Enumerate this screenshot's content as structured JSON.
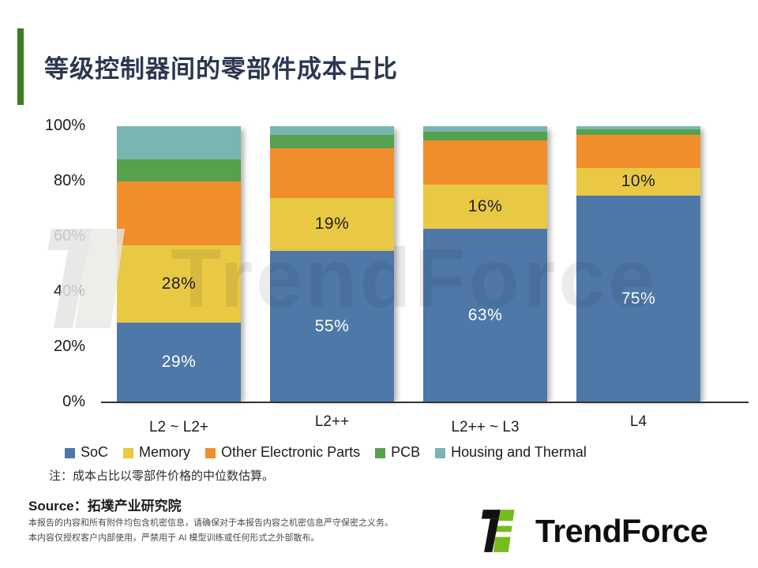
{
  "title": "等级控制器间的零部件成本占比",
  "chart_data": {
    "type": "bar",
    "stacked": true,
    "title": "等级控制器间的零部件成本占比",
    "categories": [
      "L2 ~ L2+",
      "L2++",
      "L2++ ~ L3",
      "L4"
    ],
    "series": [
      {
        "name": "SoC",
        "color": "#4D78A8",
        "values": [
          29,
          55,
          63,
          75
        ],
        "show_labels": true,
        "label_color": "#FFFFFF"
      },
      {
        "name": "Memory",
        "color": "#E9C944",
        "values": [
          28,
          19,
          16,
          10
        ],
        "show_labels": true,
        "label_color": "#1F1F1F"
      },
      {
        "name": "Other Electronic Parts",
        "color": "#F18E2C",
        "values": [
          23,
          18,
          16,
          12
        ],
        "show_labels": false,
        "label_color": "#1F1F1F"
      },
      {
        "name": "PCB",
        "color": "#55A14E",
        "values": [
          8,
          5,
          3,
          2
        ],
        "show_labels": false,
        "label_color": "#1F1F1F"
      },
      {
        "name": "Housing and Thermal",
        "color": "#7AB5B1",
        "values": [
          12,
          3,
          2,
          1
        ],
        "show_labels": false,
        "label_color": "#1F1F1F"
      }
    ],
    "y_ticks": [
      0,
      20,
      40,
      60,
      80,
      100
    ],
    "y_tick_suffix": "%",
    "ylim": [
      0,
      100
    ],
    "grid": false,
    "legend_position": "bottom",
    "value_label_suffix": "%"
  },
  "note": "注：成本占比以零部件价格的中位数估算。",
  "source": {
    "text": "Source：拓墣产业研究院"
  },
  "disclaimer": {
    "line1": "本报告的内容和所有附件均包含机密信息，请确保对于本报告内容之机密信息严守保密之义务。",
    "line2": "本内容仅授权客户内部使用，严禁用于 AI 模型训练或任何形式之外部散布。"
  },
  "watermark": {
    "text": "TrendForce"
  },
  "logo": {
    "text": "TrendForce",
    "black": "#111111",
    "green": "#77BC1F"
  },
  "colors": {
    "accent": "#3E7D22",
    "title": "#2B3750"
  }
}
